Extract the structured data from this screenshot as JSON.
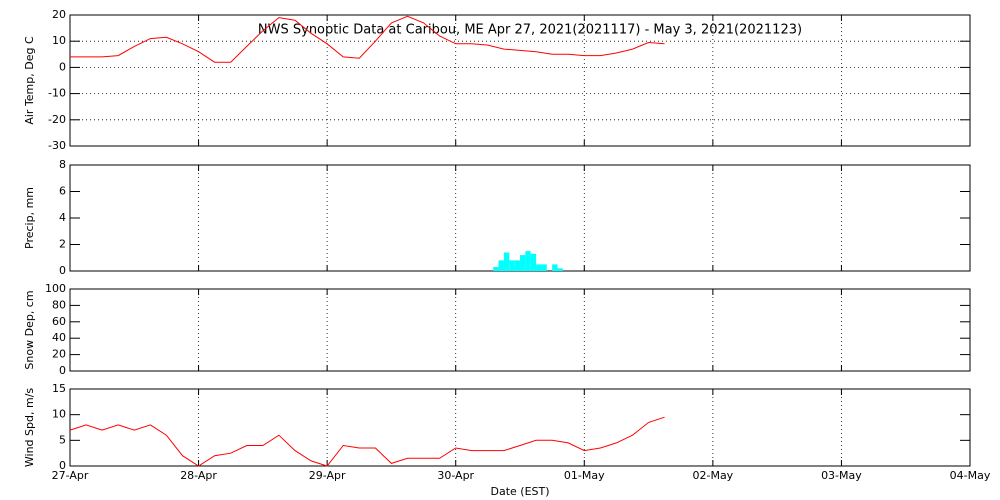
{
  "chart_data": [
    {
      "type": "line",
      "title": "NWS Synoptic Data at Caribou, ME   Apr 27, 2021(2021117) - May  3, 2021(2021123)",
      "ylabel": "Air Temp, Deg C",
      "color": "#ff0000",
      "ygrid": true,
      "xlim": [
        0,
        168
      ],
      "ylim": [
        -30,
        20
      ],
      "yticks": [
        -30,
        -20,
        -10,
        0,
        10,
        20
      ],
      "x": [
        0,
        3,
        6,
        9,
        12,
        15,
        18,
        21,
        24,
        27,
        30,
        33,
        36,
        39,
        42,
        45,
        48,
        51,
        54,
        57,
        60,
        63,
        66,
        69,
        72,
        75,
        78,
        81,
        84,
        87,
        90,
        93,
        96,
        99,
        102,
        105,
        108,
        111
      ],
      "values": [
        4,
        4,
        4,
        4.5,
        8,
        11,
        11.5,
        9,
        6,
        2,
        2,
        8,
        14,
        19,
        18,
        13,
        9,
        4,
        3.5,
        10,
        17,
        19.5,
        17,
        12,
        9,
        9,
        8.5,
        7,
        6.5,
        6,
        5,
        5,
        4.5,
        4.5,
        5.5,
        7,
        9.5,
        9
      ]
    },
    {
      "type": "bar",
      "ylabel": "Precip, mm",
      "color": "#00ffff",
      "ygrid": false,
      "xlim": [
        0,
        168
      ],
      "ylim": [
        0,
        8
      ],
      "yticks": [
        0,
        2,
        4,
        6,
        8
      ],
      "x": [
        79,
        80,
        81,
        82,
        83,
        84,
        85,
        86,
        87,
        88,
        89,
        90,
        91
      ],
      "values": [
        0.3,
        0.8,
        1.4,
        0.8,
        0.8,
        1.2,
        1.5,
        1.3,
        0.5,
        0.5,
        0,
        0.5,
        0.2
      ]
    },
    {
      "type": "line",
      "ylabel": "Snow Dep, cm",
      "color": "#ff0000",
      "ygrid": false,
      "xlim": [
        0,
        168
      ],
      "ylim": [
        0,
        100
      ],
      "yticks": [
        0,
        20,
        40,
        60,
        80,
        100
      ],
      "x": [],
      "values": []
    },
    {
      "type": "line",
      "ylabel": "Wind Spd, m/s",
      "xlabel": "Date (EST)",
      "color": "#ff0000",
      "ygrid": false,
      "xlim": [
        0,
        168
      ],
      "ylim": [
        0,
        15
      ],
      "yticks": [
        0,
        5,
        10,
        15
      ],
      "xticks": [
        {
          "value": 0,
          "label": "27-Apr"
        },
        {
          "value": 24,
          "label": "28-Apr"
        },
        {
          "value": 48,
          "label": "29-Apr"
        },
        {
          "value": 72,
          "label": "30-Apr"
        },
        {
          "value": 96,
          "label": "01-May"
        },
        {
          "value": 120,
          "label": "02-May"
        },
        {
          "value": 144,
          "label": "03-May"
        },
        {
          "value": 168,
          "label": "04-May"
        }
      ],
      "x": [
        0,
        3,
        6,
        9,
        12,
        15,
        18,
        21,
        24,
        27,
        30,
        33,
        36,
        39,
        42,
        45,
        48,
        51,
        54,
        57,
        60,
        63,
        66,
        69,
        72,
        75,
        78,
        81,
        84,
        87,
        90,
        93,
        96,
        99,
        102,
        105,
        108,
        111
      ],
      "values": [
        7,
        8,
        7,
        8,
        7,
        8,
        6,
        2,
        0,
        2,
        2.5,
        4,
        4,
        6,
        3,
        1,
        0,
        4,
        3.5,
        3.5,
        0.5,
        1.5,
        1.5,
        1.5,
        3.5,
        3,
        3,
        3,
        4,
        5,
        5,
        4.5,
        3,
        3.5,
        4.5,
        6,
        8.5,
        9.5
      ]
    }
  ]
}
